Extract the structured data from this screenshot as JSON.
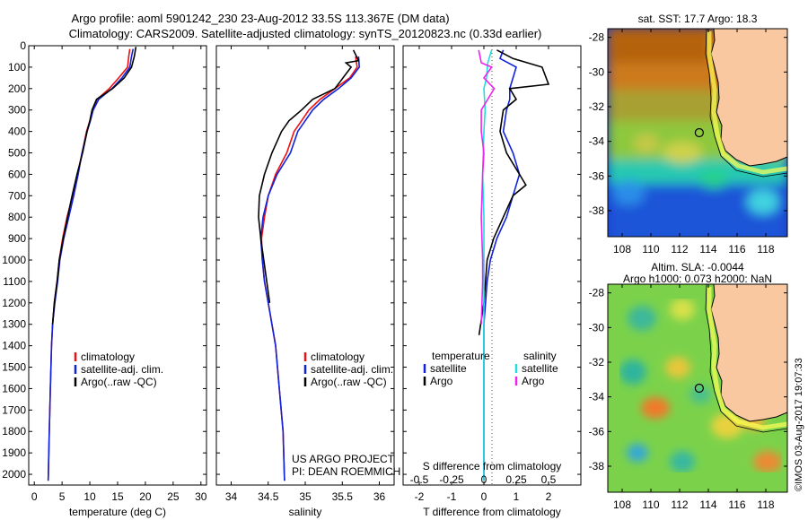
{
  "header": {
    "title_line1": "Argo profile: aoml 5901242_230 23-Aug-2012 33.5S 113.367E (DM data)",
    "title_line2": "Climatology: CARS2009. Satellite-adjusted climatology: synTS_20120823.nc (0.33d earlier)"
  },
  "colors": {
    "climatology": "#ee1111",
    "satellite": "#1122dd",
    "argo": "#000000",
    "salinity_satellite": "#22dddd",
    "salinity_argo": "#ee22ee"
  },
  "chart_data": [
    {
      "type": "line",
      "id": "temperature",
      "xlabel": "temperature (deg C)",
      "xlim": [
        -1,
        31
      ],
      "ylim": [
        2050,
        0
      ],
      "xticks": [
        0,
        5,
        10,
        15,
        20,
        25,
        30
      ],
      "yticks": [
        0,
        100,
        200,
        300,
        400,
        500,
        600,
        700,
        800,
        900,
        1000,
        1100,
        1200,
        1300,
        1400,
        1500,
        1600,
        1700,
        1800,
        1900,
        2000
      ],
      "legend": {
        "position": "center-bottom",
        "items": [
          "climatology",
          "satellite-adj. clim.",
          "Argo(..raw -QC)"
        ]
      },
      "series": [
        {
          "name": "climatology",
          "color": "#ee1111",
          "x": [
            17.2,
            17,
            16.8,
            15.2,
            13.5,
            11.3,
            10.5,
            10.0,
            9.4,
            8.6,
            7.8,
            6.9,
            5.9,
            5.1,
            4.5,
            4.1,
            3.6,
            3.3,
            3.1,
            2.9,
            2.7,
            2.5
          ],
          "y": [
            15,
            50,
            100,
            150,
            200,
            250,
            300,
            350,
            400,
            500,
            600,
            700,
            800,
            900,
            1000,
            1100,
            1200,
            1300,
            1400,
            1600,
            1800,
            2030
          ]
        },
        {
          "name": "satellite-adj. clim.",
          "color": "#1122dd",
          "x": [
            17.8,
            17.5,
            17.2,
            15.8,
            14,
            11.6,
            10.6,
            10.1,
            9.5,
            8.6,
            7.9,
            7.1,
            6.2,
            5.3,
            4.6,
            4.2,
            3.7,
            3.3,
            3.1,
            2.9,
            2.7,
            2.5
          ],
          "y": [
            15,
            50,
            100,
            150,
            200,
            250,
            300,
            350,
            400,
            500,
            600,
            700,
            800,
            900,
            1000,
            1100,
            1200,
            1300,
            1400,
            1600,
            1800,
            2030
          ]
        },
        {
          "name": "Argo(..raw -QC)",
          "color": "#000000",
          "x": [
            18.3,
            18.0,
            17.5,
            16.2,
            14.1,
            11.2,
            10.4,
            10.0,
            9.5,
            8.7,
            7.7,
            6.8,
            6.0,
            5.2,
            4.5,
            4.1,
            3.6,
            3.3
          ],
          "y": [
            5,
            50,
            100,
            150,
            200,
            250,
            300,
            350,
            400,
            500,
            600,
            700,
            800,
            900,
            1000,
            1100,
            1200,
            1300
          ]
        }
      ]
    },
    {
      "type": "line",
      "id": "salinity",
      "xlabel": "salinity",
      "xlim": [
        33.8,
        36.2
      ],
      "ylim": [
        2050,
        0
      ],
      "xticks": [
        34,
        34.5,
        35,
        35.5,
        36
      ],
      "legend": {
        "position": "center-bottom",
        "items": [
          "climatology",
          "satellite-adj. clim.",
          "Argo(..raw -QC)"
        ]
      },
      "series": [
        {
          "name": "climatology",
          "color": "#ee1111",
          "x": [
            35.68,
            35.7,
            35.6,
            35.4,
            35.2,
            35.05,
            34.95,
            34.85,
            34.75,
            34.6,
            34.5,
            34.45,
            34.41,
            34.42,
            34.45,
            34.5,
            34.55,
            34.6,
            34.65,
            34.7,
            34.72
          ],
          "y": [
            50,
            100,
            150,
            200,
            250,
            300,
            350,
            400,
            500,
            600,
            700,
            800,
            900,
            1000,
            1100,
            1200,
            1300,
            1400,
            1600,
            1800,
            2030
          ]
        },
        {
          "name": "satellite-adj. clim.",
          "color": "#1122dd",
          "x": [
            35.72,
            35.73,
            35.62,
            35.45,
            35.25,
            35.1,
            35.0,
            34.9,
            34.8,
            34.62,
            34.5,
            34.43,
            34.4,
            34.42,
            34.45,
            34.5,
            34.55,
            34.6,
            34.65,
            34.7,
            34.72
          ],
          "y": [
            50,
            100,
            150,
            200,
            250,
            300,
            350,
            400,
            500,
            600,
            700,
            800,
            900,
            1000,
            1100,
            1200,
            1300,
            1400,
            1600,
            1800,
            2030
          ]
        },
        {
          "name": "Argo(..raw -QC)",
          "color": "#000000",
          "x": [
            35.65,
            35.72,
            35.55,
            35.62,
            35.4,
            35.1,
            34.95,
            34.78,
            34.68,
            34.55,
            34.45,
            34.38,
            34.37,
            34.4,
            34.44,
            34.48,
            34.52
          ],
          "y": [
            20,
            70,
            80,
            100,
            200,
            250,
            300,
            350,
            400,
            500,
            600,
            700,
            800,
            900,
            1000,
            1100,
            1200
          ]
        }
      ]
    },
    {
      "type": "line",
      "id": "differences",
      "xlabel_top": "S difference from climatology",
      "xlabel": "T difference from climatology",
      "xlim_T": [
        -2.5,
        3
      ],
      "xticks_T": [
        -2,
        -1,
        0,
        1,
        2
      ],
      "xticks_S": [
        "-0.5",
        "-0.25",
        "0",
        "0.25",
        "0.5"
      ],
      "ylim": [
        2050,
        0
      ],
      "legend_titles": [
        "temperature",
        "salinity"
      ],
      "legend_items": [
        "satellite",
        "Argo",
        "satellite",
        "Argo"
      ],
      "series": [
        {
          "name": "temperature satellite",
          "color": "#1122dd",
          "x": [
            0.6,
            0.5,
            1.0,
            0.9,
            0.8,
            0.8,
            0.7,
            0.6,
            0.9,
            1.1,
            0.9,
            0.7,
            0.4,
            0.2,
            0.1,
            0.05,
            0,
            0,
            0,
            0
          ],
          "y": [
            20,
            60,
            100,
            150,
            200,
            250,
            300,
            400,
            500,
            600,
            700,
            800,
            900,
            1000,
            1100,
            1200,
            1300,
            1500,
            1800,
            2030
          ]
        },
        {
          "name": "temperature Argo",
          "color": "#000000",
          "x": [
            0.4,
            0.9,
            1.8,
            2.0,
            0.8,
            1.0,
            0.6,
            0.5,
            0.7,
            1.3,
            0.9,
            0.6,
            0.3,
            0.1,
            0.05,
            0,
            -0.1,
            -0.15
          ],
          "y": [
            20,
            60,
            100,
            180,
            200,
            250,
            300,
            400,
            500,
            650,
            700,
            800,
            900,
            1000,
            1100,
            1200,
            1300,
            1350
          ]
        },
        {
          "name": "salinity satellite",
          "color": "#22dddd",
          "x": [
            0.06,
            0.03,
            0.02,
            0.0,
            0.01,
            0.0,
            -0.01,
            0,
            0,
            0,
            0,
            0,
            0,
            0
          ],
          "y": [
            20,
            80,
            150,
            200,
            300,
            400,
            600,
            800,
            1000,
            1200,
            1400,
            1600,
            1800,
            2030
          ]
        },
        {
          "name": "salinity Argo",
          "color": "#ee22ee",
          "x": [
            -0.04,
            -0.02,
            0.06,
            0.0,
            0.08,
            -0.02,
            -0.02,
            0.0,
            -0.01,
            -0.02,
            -0.01,
            -0.01,
            -0.02
          ],
          "y": [
            20,
            80,
            100,
            150,
            200,
            300,
            400,
            500,
            600,
            800,
            1000,
            1100,
            1300
          ]
        }
      ]
    }
  ],
  "maps": {
    "sst": {
      "title": "sat. SST: 17.7 Argo: 18.3",
      "lat_ticks": [
        "-28",
        "-30",
        "-32",
        "-34",
        "-36",
        "-38"
      ],
      "lon_ticks": [
        "108",
        "110",
        "112",
        "114",
        "116",
        "118"
      ]
    },
    "sla": {
      "title_line1": "Altim. SLA: -0.0044",
      "title_line2": "Argo h1000: 0.073 h2000: NaN",
      "lat_ticks": [
        "-28",
        "-30",
        "-32",
        "-34",
        "-36",
        "-38"
      ],
      "lon_ticks": [
        "108",
        "110",
        "112",
        "114",
        "116",
        "118"
      ]
    },
    "argo_position": {
      "lat": -33.5,
      "lon": 113.367
    }
  },
  "annotations": {
    "project_line1": "US ARGO PROJECT",
    "project_line2": "PI: DEAN ROEMMICH",
    "copyright": "©IMOS 03-Aug-2017 19:07:33"
  }
}
